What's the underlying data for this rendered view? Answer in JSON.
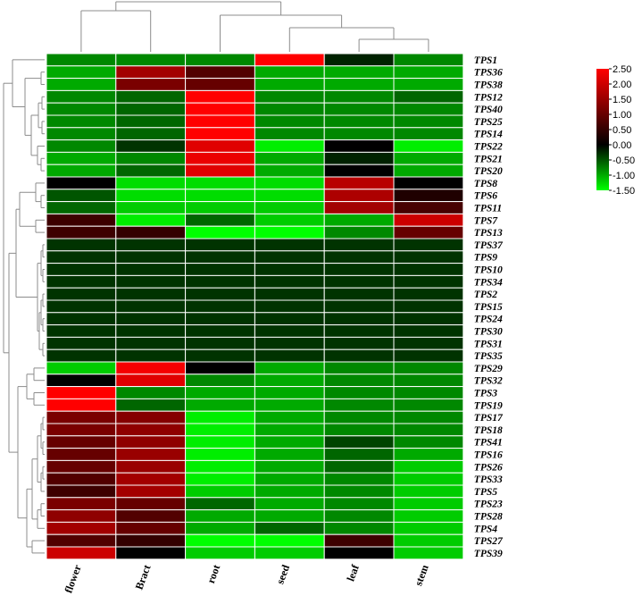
{
  "chart_data": {
    "type": "heatmap",
    "columns": [
      "flower",
      "Bract",
      "root",
      "seed",
      "leaf",
      "stem"
    ],
    "rows": [
      "TPS1",
      "TPS36",
      "TPS38",
      "TPS12",
      "TPS40",
      "TPS25",
      "TPS14",
      "TPS22",
      "TPS21",
      "TPS20",
      "TPS8",
      "TPS6",
      "TPS11",
      "TPS7",
      "TPS13",
      "TPS37",
      "TPS9",
      "TPS10",
      "TPS34",
      "TPS2",
      "TPS15",
      "TPS24",
      "TPS30",
      "TPS31",
      "TPS35",
      "TPS29",
      "TPS32",
      "TPS3",
      "TPS19",
      "TPS17",
      "TPS18",
      "TPS41",
      "TPS16",
      "TPS26",
      "TPS33",
      "TPS5",
      "TPS23",
      "TPS28",
      "TPS4",
      "TPS27",
      "TPS39"
    ],
    "values": [
      [
        -0.8,
        -0.8,
        -0.8,
        2.5,
        -0.2,
        -0.8
      ],
      [
        -1.0,
        1.6,
        0.8,
        -1.0,
        -1.0,
        -1.0
      ],
      [
        -1.0,
        1.2,
        1.0,
        -1.0,
        -1.0,
        -1.0
      ],
      [
        -0.8,
        -0.6,
        2.5,
        -0.8,
        -0.8,
        -0.6
      ],
      [
        -0.8,
        -0.6,
        2.5,
        -0.8,
        -0.8,
        -0.8
      ],
      [
        -0.8,
        -0.6,
        2.5,
        -0.8,
        -0.8,
        -0.8
      ],
      [
        -0.8,
        -0.6,
        2.5,
        -0.8,
        -0.8,
        -0.8
      ],
      [
        -0.8,
        -0.3,
        2.2,
        -1.4,
        0.0,
        -1.4
      ],
      [
        -1.0,
        -0.8,
        2.3,
        -1.0,
        -0.2,
        -1.0
      ],
      [
        -1.0,
        -0.6,
        2.2,
        -1.0,
        0.0,
        -1.0
      ],
      [
        0.0,
        -1.3,
        -1.3,
        -1.3,
        1.8,
        0.0
      ],
      [
        -0.5,
        -1.3,
        -1.3,
        -1.3,
        1.7,
        0.3
      ],
      [
        -0.6,
        -1.2,
        -1.2,
        -1.2,
        1.6,
        0.7
      ],
      [
        0.6,
        -1.4,
        -0.6,
        -1.2,
        -1.0,
        2.0
      ],
      [
        0.6,
        0.5,
        -1.5,
        -1.5,
        -0.8,
        1.0
      ],
      [
        -0.3,
        -0.3,
        -0.3,
        -0.3,
        -0.3,
        -0.3
      ],
      [
        -0.3,
        -0.3,
        -0.3,
        -0.3,
        -0.3,
        -0.3
      ],
      [
        -0.3,
        -0.3,
        -0.3,
        -0.3,
        -0.3,
        -0.3
      ],
      [
        -0.3,
        -0.3,
        -0.3,
        -0.3,
        -0.3,
        -0.3
      ],
      [
        -0.3,
        -0.3,
        -0.3,
        -0.3,
        -0.3,
        -0.3
      ],
      [
        -0.3,
        -0.3,
        -0.3,
        -0.3,
        -0.3,
        -0.3
      ],
      [
        -0.3,
        -0.3,
        -0.3,
        -0.3,
        -0.3,
        -0.3
      ],
      [
        -0.3,
        -0.3,
        -0.3,
        -0.3,
        -0.3,
        -0.3
      ],
      [
        -0.3,
        -0.3,
        -0.3,
        -0.3,
        -0.3,
        -0.3
      ],
      [
        -0.3,
        -0.3,
        -0.3,
        -0.3,
        -0.3,
        -0.3
      ],
      [
        -1.2,
        2.4,
        0.0,
        -1.0,
        -0.8,
        -0.8
      ],
      [
        0.0,
        2.2,
        -0.8,
        -1.0,
        -0.8,
        -0.8
      ],
      [
        2.5,
        -0.8,
        -1.0,
        -1.0,
        -0.8,
        -0.8
      ],
      [
        2.5,
        -0.6,
        -1.0,
        -1.0,
        -0.8,
        -0.8
      ],
      [
        1.2,
        1.3,
        -1.4,
        -1.0,
        -0.8,
        -0.8
      ],
      [
        1.2,
        1.4,
        -1.4,
        -1.0,
        -0.8,
        -0.8
      ],
      [
        1.0,
        1.4,
        -1.4,
        -1.0,
        -0.4,
        -0.8
      ],
      [
        1.0,
        1.5,
        -1.4,
        -1.0,
        -0.6,
        -1.0
      ],
      [
        1.0,
        1.5,
        -1.4,
        -1.0,
        -0.6,
        -1.2
      ],
      [
        0.8,
        1.6,
        -1.4,
        -1.0,
        -0.8,
        -1.2
      ],
      [
        0.6,
        1.6,
        -1.2,
        -1.0,
        -0.8,
        -1.2
      ],
      [
        1.2,
        1.0,
        -0.6,
        -1.0,
        -0.8,
        -1.2
      ],
      [
        1.4,
        0.8,
        -1.0,
        -1.0,
        -0.8,
        -1.2
      ],
      [
        1.6,
        1.0,
        -1.0,
        -0.6,
        -0.8,
        -1.2
      ],
      [
        0.8,
        0.5,
        -1.5,
        -1.5,
        0.6,
        -1.2
      ],
      [
        2.0,
        0.0,
        -1.2,
        -1.2,
        0.0,
        -1.2
      ]
    ],
    "colorbar": {
      "ticks": [
        "2.50",
        "2.00",
        "1.50",
        "1.00",
        "0.50",
        "0.00",
        "-0.50",
        "-1.00",
        "-1.50"
      ],
      "min": -1.5,
      "max": 2.5,
      "colors": {
        "low": "#00ff00",
        "mid": "#000000",
        "high": "#ff0000"
      }
    }
  }
}
